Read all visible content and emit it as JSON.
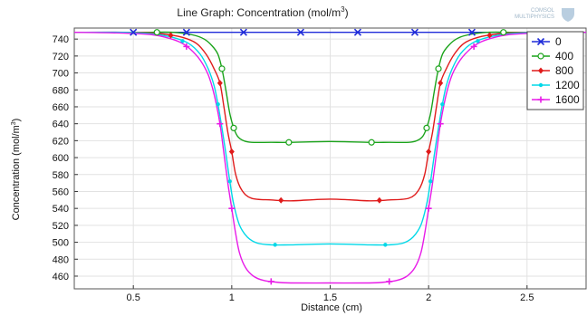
{
  "logo": {
    "line1": "COMSOL",
    "line2": "MULTIPHYSICS"
  },
  "chart_data": {
    "type": "line",
    "title": "Line Graph: Concentration (mol/m",
    "title_sup": "3",
    "title_end": ")",
    "xlabel": "Distance (cm)",
    "ylabel": "Concentration (mol/m",
    "ylabel_sup": "3",
    "ylabel_end": ")",
    "xlim": [
      0.2,
      2.8
    ],
    "ylim": [
      445,
      753
    ],
    "xticks": [
      0.5,
      1,
      1.5,
      2,
      2.5
    ],
    "xtick_labels": [
      "0.5",
      "1",
      "1.5",
      "2",
      "2.5"
    ],
    "yticks": [
      460,
      480,
      500,
      520,
      540,
      560,
      580,
      600,
      620,
      640,
      660,
      680,
      700,
      720,
      740
    ],
    "ytick_labels": [
      "460",
      "480",
      "500",
      "520",
      "540",
      "560",
      "580",
      "600",
      "620",
      "640",
      "660",
      "680",
      "700",
      "720",
      "740"
    ],
    "grid": true,
    "legend_position": "top-right",
    "series": [
      {
        "name": "0",
        "color": "#1f2bd9",
        "marker": "x",
        "x": [
          0.2,
          0.5,
          0.77,
          1.06,
          1.35,
          1.64,
          1.93,
          2.22,
          2.52,
          2.8
        ],
        "y": [
          748,
          748,
          748,
          748,
          748,
          748,
          748,
          748,
          748,
          748
        ],
        "marker_x": [
          0.5,
          0.77,
          1.06,
          1.35,
          1.64,
          1.93,
          2.22
        ]
      },
      {
        "name": "400",
        "color": "#1aa31a",
        "marker": "circle",
        "x": [
          0.2,
          0.55,
          0.7,
          0.8,
          0.86,
          0.9,
          0.93,
          0.95,
          0.97,
          0.99,
          1.01,
          1.03,
          1.06,
          1.1,
          1.2,
          1.3,
          1.5,
          1.7,
          1.8,
          1.9,
          1.94,
          1.97,
          1.99,
          2.01,
          2.03,
          2.05,
          2.07,
          2.1,
          2.14,
          2.2,
          2.3,
          2.45,
          2.8
        ],
        "y": [
          748,
          748,
          748,
          745,
          740,
          732,
          722,
          705,
          680,
          652,
          635,
          625,
          620,
          618,
          618,
          618,
          619,
          618,
          618,
          618,
          620,
          625,
          635,
          652,
          680,
          705,
          722,
          732,
          740,
          745,
          748,
          748,
          748
        ],
        "marker_x": [
          0.62,
          0.95,
          1.01,
          1.29,
          1.71,
          1.99,
          2.05,
          2.38
        ]
      },
      {
        "name": "800",
        "color": "#e01b1b",
        "marker": "diamond",
        "x": [
          0.2,
          0.5,
          0.65,
          0.75,
          0.82,
          0.87,
          0.91,
          0.94,
          0.96,
          0.98,
          1.0,
          1.02,
          1.05,
          1.1,
          1.2,
          1.3,
          1.5,
          1.7,
          1.8,
          1.9,
          1.95,
          1.98,
          2.0,
          2.02,
          2.04,
          2.06,
          2.09,
          2.13,
          2.18,
          2.25,
          2.35,
          2.5,
          2.8
        ],
        "y": [
          748,
          748,
          746,
          742,
          735,
          722,
          705,
          688,
          660,
          630,
          607,
          580,
          562,
          552,
          550,
          549,
          551,
          549,
          550,
          552,
          562,
          580,
          607,
          630,
          660,
          688,
          705,
          722,
          735,
          742,
          746,
          748,
          748
        ],
        "marker_x": [
          0.69,
          0.94,
          1.0,
          1.25,
          1.75,
          2.0,
          2.06,
          2.31
        ]
      },
      {
        "name": "1200",
        "color": "#00d8e8",
        "marker": "point",
        "x": [
          0.2,
          0.45,
          0.6,
          0.7,
          0.78,
          0.84,
          0.88,
          0.91,
          0.93,
          0.95,
          0.97,
          0.99,
          1.01,
          1.04,
          1.08,
          1.13,
          1.2,
          1.3,
          1.5,
          1.7,
          1.8,
          1.87,
          1.92,
          1.96,
          1.99,
          2.01,
          2.03,
          2.05,
          2.07,
          2.09,
          2.12,
          2.16,
          2.22,
          2.3,
          2.4,
          2.55,
          2.8
        ],
        "y": [
          748,
          748,
          746,
          742,
          735,
          722,
          705,
          685,
          663,
          635,
          605,
          572,
          545,
          520,
          506,
          499,
          497,
          497,
          498,
          497,
          497,
          499,
          506,
          520,
          545,
          572,
          605,
          635,
          663,
          685,
          705,
          722,
          735,
          742,
          746,
          748,
          748
        ],
        "marker_x": [
          0.75,
          0.93,
          0.99,
          1.22,
          1.78,
          2.01,
          2.07,
          2.25
        ]
      },
      {
        "name": "1600",
        "color": "#e81be8",
        "marker": "plus",
        "x": [
          0.2,
          0.45,
          0.6,
          0.68,
          0.74,
          0.79,
          0.84,
          0.88,
          0.91,
          0.94,
          0.96,
          0.98,
          1.0,
          1.02,
          1.04,
          1.07,
          1.11,
          1.16,
          1.22,
          1.3,
          1.5,
          1.7,
          1.78,
          1.84,
          1.89,
          1.93,
          1.96,
          1.98,
          2.0,
          2.02,
          2.04,
          2.06,
          2.09,
          2.12,
          2.16,
          2.21,
          2.26,
          2.32,
          2.4,
          2.55,
          2.8
        ],
        "y": [
          748,
          747,
          745,
          741,
          736,
          728,
          715,
          698,
          675,
          640,
          605,
          570,
          540,
          510,
          487,
          470,
          460,
          455,
          453,
          452,
          452,
          452,
          453,
          455,
          460,
          470,
          487,
          510,
          540,
          570,
          605,
          640,
          675,
          698,
          715,
          728,
          736,
          741,
          745,
          747,
          748
        ],
        "marker_x": [
          0.77,
          0.94,
          1.0,
          1.2,
          1.8,
          2.0,
          2.06,
          2.23
        ]
      }
    ]
  }
}
